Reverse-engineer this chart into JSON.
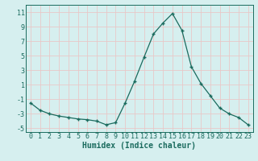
{
  "x": [
    0,
    1,
    2,
    3,
    4,
    5,
    6,
    7,
    8,
    9,
    10,
    11,
    12,
    13,
    14,
    15,
    16,
    17,
    18,
    19,
    20,
    21,
    22,
    23
  ],
  "y": [
    -1.5,
    -2.5,
    -3.0,
    -3.3,
    -3.5,
    -3.7,
    -3.8,
    -4.0,
    -4.5,
    -4.2,
    -1.5,
    1.5,
    4.8,
    8.0,
    9.5,
    10.8,
    8.5,
    3.5,
    1.2,
    -0.5,
    -2.2,
    -3.0,
    -3.5,
    -4.5
  ],
  "line_color": "#1a6b5e",
  "marker": "+",
  "xlabel": "Humidex (Indice chaleur)",
  "ylabel": "",
  "title": "",
  "xlim": [
    -0.5,
    23.5
  ],
  "ylim": [
    -5.5,
    12.0
  ],
  "xticks": [
    0,
    1,
    2,
    3,
    4,
    5,
    6,
    7,
    8,
    9,
    10,
    11,
    12,
    13,
    14,
    15,
    16,
    17,
    18,
    19,
    20,
    21,
    22,
    23
  ],
  "yticks": [
    -5,
    -3,
    -1,
    1,
    3,
    5,
    7,
    9,
    11
  ],
  "bg_color": "#d6efef",
  "grid_color": "#c8e8e8",
  "axes_color": "#1a6b5e",
  "tick_font_size": 6,
  "xlabel_fontsize": 7
}
